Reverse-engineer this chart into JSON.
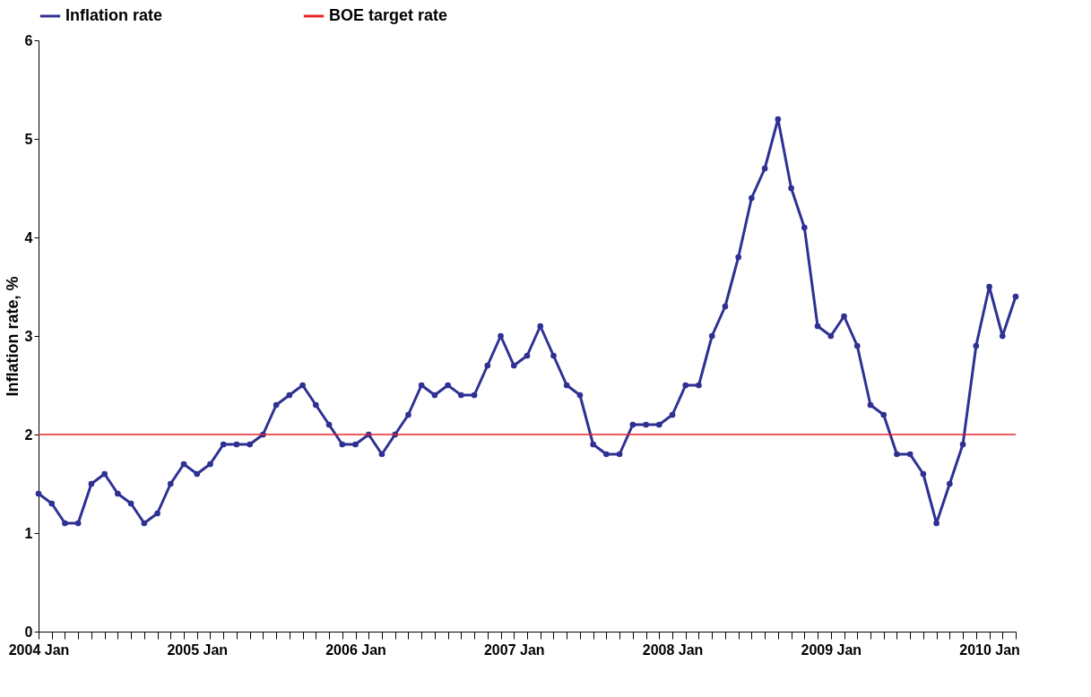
{
  "chart_data": {
    "type": "line",
    "ylabel": "Inflation rate, %",
    "categories": [
      "2004 Jan",
      null,
      null,
      null,
      null,
      null,
      null,
      null,
      null,
      null,
      null,
      null,
      "2005 Jan",
      null,
      null,
      null,
      null,
      null,
      null,
      null,
      null,
      null,
      null,
      null,
      "2006 Jan",
      null,
      null,
      null,
      null,
      null,
      null,
      null,
      null,
      null,
      null,
      null,
      "2007 Jan",
      null,
      null,
      null,
      null,
      null,
      null,
      null,
      null,
      null,
      null,
      null,
      "2008 Jan",
      null,
      null,
      null,
      null,
      null,
      null,
      null,
      null,
      null,
      null,
      null,
      "2009 Jan",
      null,
      null,
      null,
      null,
      null,
      null,
      null,
      null,
      null,
      null,
      null,
      "2010 Jan",
      null,
      null
    ],
    "series": [
      {
        "name": "Inflation rate",
        "color": "#2e3192",
        "values": [
          1.4,
          1.3,
          1.1,
          1.1,
          1.5,
          1.6,
          1.4,
          1.3,
          1.1,
          1.2,
          1.5,
          1.7,
          1.6,
          1.7,
          1.9,
          1.9,
          1.9,
          2.0,
          2.3,
          2.4,
          2.5,
          2.3,
          2.1,
          1.9,
          1.9,
          2.0,
          1.8,
          2.0,
          2.2,
          2.5,
          2.4,
          2.5,
          2.4,
          2.4,
          2.7,
          3.0,
          2.7,
          2.8,
          3.1,
          2.8,
          2.5,
          2.4,
          1.9,
          1.8,
          1.8,
          2.1,
          2.1,
          2.1,
          2.2,
          2.5,
          2.5,
          3.0,
          3.3,
          3.8,
          4.4,
          4.7,
          5.2,
          4.5,
          4.1,
          3.1,
          3.0,
          3.2,
          2.9,
          2.3,
          2.2,
          1.8,
          1.8,
          1.6,
          1.1,
          1.5,
          1.9,
          2.9,
          3.5,
          3.0,
          3.4
        ]
      }
    ],
    "ref_lines": [
      {
        "axis": "y",
        "value": 2,
        "label": "BOE target rate",
        "color": "#e8262b"
      }
    ],
    "ylim": [
      0,
      6
    ],
    "yticks": [
      0,
      1,
      2,
      3,
      4,
      5,
      6
    ],
    "grid": false,
    "legend": "top",
    "marker": "circle",
    "line_style": "solid"
  }
}
